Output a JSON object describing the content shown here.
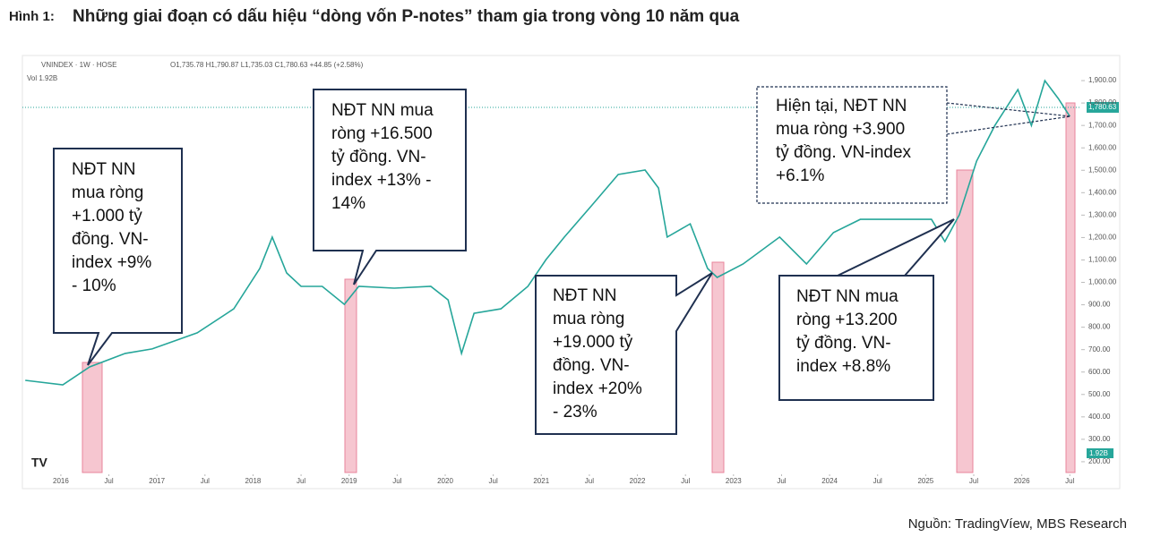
{
  "figure_label": "Hình 1:",
  "chart_data": {
    "type": "line",
    "title": "Những giai đoạn có dấu hiệu “dòng vốn P-notes” tham gia trong vòng 10 năm qua",
    "header": {
      "symbol": "VNINDEX · 1W · HOSE",
      "ohlc": "O1,735.78 H1,790.87 L1,735.03 C1,780.63 +44.85 (+2.58%)",
      "volume": "Vol 1.92B"
    },
    "x": [
      2015.63,
      2016.02,
      2016.3,
      2016.67,
      2016.95,
      2017.42,
      2017.8,
      2018.07,
      2018.2,
      2018.35,
      2018.5,
      2018.72,
      2018.95,
      2019.1,
      2019.47,
      2019.85,
      2020.03,
      2020.17,
      2020.3,
      2020.58,
      2020.86,
      2021.05,
      2021.24,
      2021.52,
      2021.8,
      2022.08,
      2022.22,
      2022.31,
      2022.55,
      2022.73,
      2022.83,
      2023.1,
      2023.48,
      2023.76,
      2024.04,
      2024.32,
      2024.69,
      2025.06,
      2025.2,
      2025.35,
      2025.53,
      2025.72,
      2025.96,
      2026.1,
      2026.24,
      2026.38,
      2026.5
    ],
    "series": [
      {
        "name": "VNINDEX",
        "color": "#26a69a",
        "values": [
          563,
          543,
          623,
          683,
          703,
          775,
          882,
          1062,
          1202,
          1042,
          982,
          982,
          902,
          982,
          974,
          982,
          922,
          683,
          862,
          882,
          982,
          1102,
          1202,
          1341,
          1481,
          1501,
          1421,
          1202,
          1261,
          1062,
          1022,
          1082,
          1202,
          1082,
          1222,
          1281,
          1281,
          1281,
          1182,
          1301,
          1541,
          1700,
          1860,
          1700,
          1900,
          1820,
          1740
        ]
      }
    ],
    "last_price": {
      "value": 1780.63,
      "label": "1,780.63"
    },
    "last_volume_label": "1.92B",
    "xlim": [
      2015.6,
      2026.6
    ],
    "xticks": [
      2016,
      {
        "value": 2016.5,
        "label": "Jul"
      },
      2017,
      {
        "value": 2017.5,
        "label": "Jul"
      },
      2018,
      {
        "value": 2018.5,
        "label": "Jul"
      },
      2019,
      {
        "value": 2019.5,
        "label": "Jul"
      },
      2020,
      {
        "value": 2020.5,
        "label": "Jul"
      },
      2021,
      {
        "value": 2021.5,
        "label": "Jul"
      },
      2022,
      {
        "value": 2022.5,
        "label": "Jul"
      },
      2023,
      {
        "value": 2023.5,
        "label": "Jul"
      },
      2024,
      {
        "value": 2024.5,
        "label": "Jul"
      },
      2025,
      {
        "value": 2025.5,
        "label": "Jul"
      },
      2026,
      {
        "value": 2026.5,
        "label": "Jul"
      }
    ],
    "ylim": [
      84,
      2012
    ],
    "yticks": [
      {
        "value": 200,
        "label": "200.00"
      },
      {
        "value": 300,
        "label": "300.00"
      },
      {
        "value": 400,
        "label": "400.00"
      },
      {
        "value": 500,
        "label": "500.00"
      },
      {
        "value": 600,
        "label": "600.00"
      },
      {
        "value": 700,
        "label": "700.00"
      },
      {
        "value": 800,
        "label": "800.00"
      },
      {
        "value": 900,
        "label": "900.00"
      },
      {
        "value": 1000,
        "label": "1,000.00"
      },
      {
        "value": 1100,
        "label": "1,100.00"
      },
      {
        "value": 1200,
        "label": "1,200.00"
      },
      {
        "value": 1300,
        "label": "1,300.00"
      },
      {
        "value": 1400,
        "label": "1,400.00"
      },
      {
        "value": 1500,
        "label": "1,500.00"
      },
      {
        "value": 1600,
        "label": "1,600.00"
      },
      {
        "value": 1700,
        "label": "1,700.00"
      },
      {
        "value": 1800,
        "label": "1,800.00"
      },
      {
        "value": 1900,
        "label": "1,900.00"
      }
    ],
    "grid": false,
    "annotations": [
      {
        "lines": [
          "NĐT NN",
          "mua ròng",
          "+1.000 tỷ",
          "đồng. VN-",
          "index +9%",
          "- 10%"
        ]
      },
      {
        "lines": [
          "NĐT NN mua",
          "ròng +16.500",
          "tỷ đồng. VN-",
          "index +13% -",
          "14%"
        ]
      },
      {
        "lines": [
          "NĐT NN",
          "mua ròng",
          "+19.000 tỷ",
          "đồng. VN-",
          "index +20%",
          "- 23%"
        ]
      },
      {
        "lines": [
          "NĐT NN mua",
          "ròng +13.200",
          "tỷ đồng. VN-",
          "index +8.8%"
        ]
      },
      {
        "lines": [
          "Hiện tại, NĐT NN",
          "mua ròng +3.900",
          "tỷ đồng. VN-index",
          "+6.1%"
        ]
      }
    ]
  },
  "source": "Nguồn: TradingVíew, MBS Research"
}
